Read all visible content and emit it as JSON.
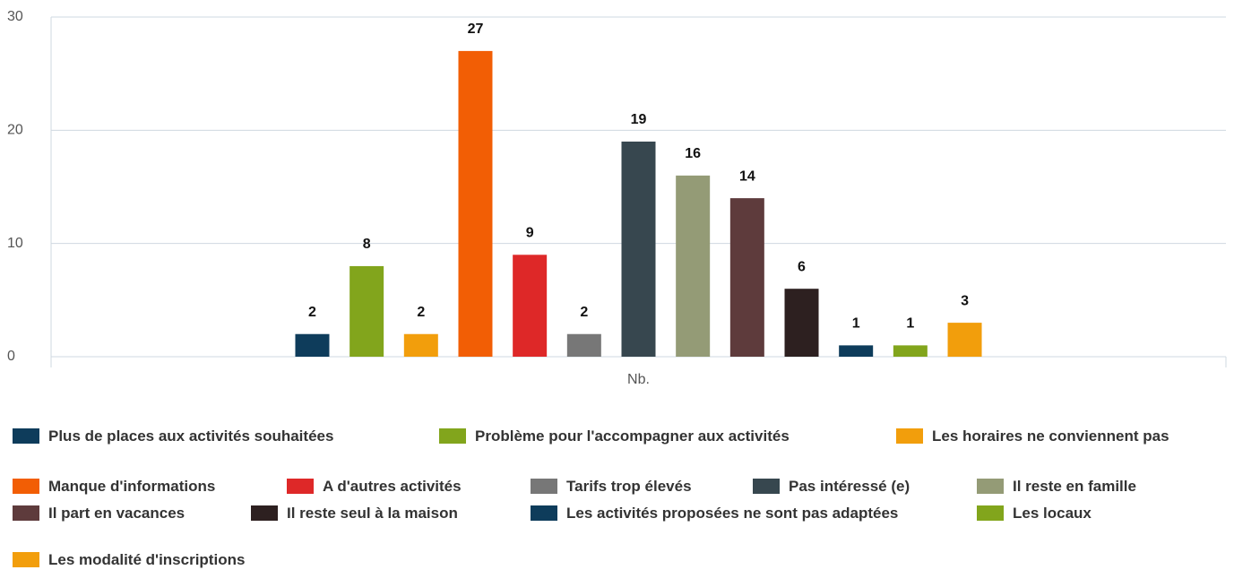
{
  "chart_data": {
    "type": "bar",
    "categories": [
      "Nb."
    ],
    "ylim": [
      0,
      30
    ],
    "yticks": [
      0,
      10,
      20,
      30
    ],
    "grid": true,
    "series": [
      {
        "name": "Plus de places aux activités souhaitées",
        "color": "#0e3c5b",
        "values": [
          2
        ]
      },
      {
        "name": "Problème pour l'accompagner aux activités",
        "color": "#82a51c",
        "values": [
          8
        ]
      },
      {
        "name": "Les horaires ne conviennent pas",
        "color": "#f29e0c",
        "values": [
          2
        ]
      },
      {
        "name": "Manque d'informations",
        "color": "#f25e05",
        "values": [
          27
        ]
      },
      {
        "name": "A d'autres activités",
        "color": "#de2828",
        "values": [
          9
        ]
      },
      {
        "name": "Tarifs trop élevés",
        "color": "#777777",
        "values": [
          2
        ]
      },
      {
        "name": "Pas intéressé (e)",
        "color": "#37474f",
        "values": [
          19
        ]
      },
      {
        "name": "Il reste en famille",
        "color": "#949b76",
        "values": [
          16
        ]
      },
      {
        "name": "Il part en vacances",
        "color": "#5e3b3c",
        "values": [
          14
        ]
      },
      {
        "name": "Il reste seul à la maison",
        "color": "#2d2020",
        "values": [
          6
        ]
      },
      {
        "name": "Les activités proposées ne sont pas adaptées",
        "color": "#0e3c5b",
        "values": [
          1
        ]
      },
      {
        "name": "Les locaux",
        "color": "#82a51c",
        "values": [
          1
        ]
      },
      {
        "name": "Les modalité d'inscriptions",
        "color": "#f29e0c",
        "values": [
          3
        ]
      }
    ]
  }
}
